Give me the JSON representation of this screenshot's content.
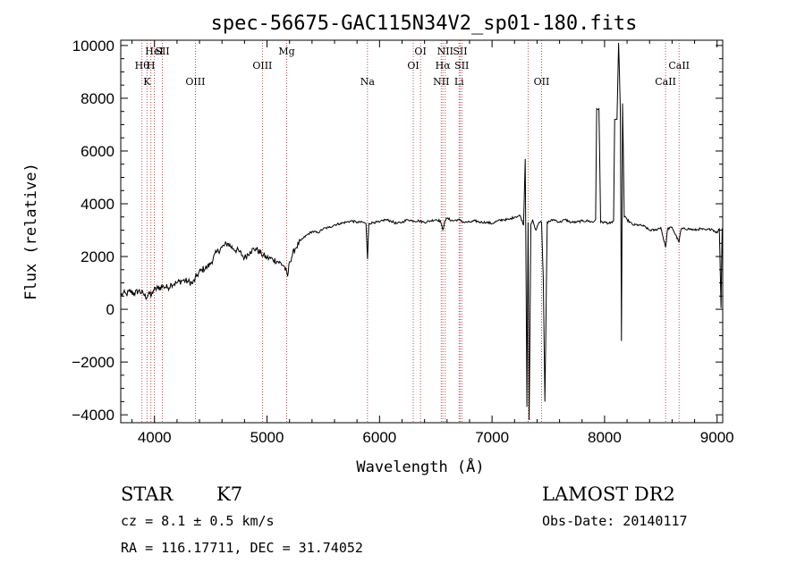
{
  "chart_data": {
    "type": "line",
    "title": "spec-56675-GAC115N34V2_sp01-180.fits",
    "xlabel": "Wavelength (Å)",
    "ylabel": "Flux (relative)",
    "xlim": [
      3700,
      9050
    ],
    "ylim": [
      -4300,
      10200
    ],
    "x_ticks": [
      4000,
      5000,
      6000,
      7000,
      8000,
      9000
    ],
    "y_ticks": [
      -4000,
      -2000,
      0,
      2000,
      4000,
      6000,
      8000,
      10000
    ],
    "x_tick_labels": [
      "4000",
      "5000",
      "6000",
      "7000",
      "8000",
      "9000"
    ],
    "y_tick_labels": [
      "−4000",
      "−2000",
      "0",
      "2000",
      "4000",
      "6000",
      "8000",
      "10000"
    ],
    "grid": false,
    "series": [
      {
        "color": "#000000",
        "points": [
          [
            3700,
            500
          ],
          [
            3720,
            620
          ],
          [
            3750,
            560
          ],
          [
            3780,
            680
          ],
          [
            3820,
            600
          ],
          [
            3860,
            700
          ],
          [
            3900,
            580
          ],
          [
            3933,
            450
          ],
          [
            3950,
            650
          ],
          [
            3968,
            480
          ],
          [
            3990,
            720
          ],
          [
            4030,
            800
          ],
          [
            4080,
            870
          ],
          [
            4120,
            820
          ],
          [
            4150,
            960
          ],
          [
            4200,
            1000
          ],
          [
            4250,
            1100
          ],
          [
            4300,
            1050
          ],
          [
            4340,
            980
          ],
          [
            4380,
            1300
          ],
          [
            4420,
            1500
          ],
          [
            4470,
            1600
          ],
          [
            4500,
            1750
          ],
          [
            4550,
            2150
          ],
          [
            4600,
            2350
          ],
          [
            4650,
            2500
          ],
          [
            4700,
            2300
          ],
          [
            4750,
            2200
          ],
          [
            4800,
            1950
          ],
          [
            4850,
            2200
          ],
          [
            4900,
            2300
          ],
          [
            4950,
            2100
          ],
          [
            5000,
            1950
          ],
          [
            5050,
            1900
          ],
          [
            5100,
            1800
          ],
          [
            5150,
            1650
          ],
          [
            5183,
            1250
          ],
          [
            5200,
            1800
          ],
          [
            5250,
            2300
          ],
          [
            5300,
            2600
          ],
          [
            5350,
            2800
          ],
          [
            5400,
            2950
          ],
          [
            5450,
            2900
          ],
          [
            5500,
            3050
          ],
          [
            5550,
            3100
          ],
          [
            5600,
            3200
          ],
          [
            5650,
            3250
          ],
          [
            5700,
            3300
          ],
          [
            5750,
            3350
          ],
          [
            5800,
            3300
          ],
          [
            5850,
            3300
          ],
          [
            5880,
            3250
          ],
          [
            5893,
            1900
          ],
          [
            5905,
            3250
          ],
          [
            5950,
            3300
          ],
          [
            6000,
            3300
          ],
          [
            6050,
            3400
          ],
          [
            6100,
            3350
          ],
          [
            6150,
            3250
          ],
          [
            6200,
            3300
          ],
          [
            6250,
            3400
          ],
          [
            6300,
            3350
          ],
          [
            6350,
            3350
          ],
          [
            6400,
            3300
          ],
          [
            6450,
            3350
          ],
          [
            6500,
            3400
          ],
          [
            6540,
            3350
          ],
          [
            6563,
            3000
          ],
          [
            6580,
            3350
          ],
          [
            6600,
            3450
          ],
          [
            6650,
            3350
          ],
          [
            6700,
            3400
          ],
          [
            6750,
            3300
          ],
          [
            6800,
            3300
          ],
          [
            6850,
            3350
          ],
          [
            6900,
            3300
          ],
          [
            6950,
            3300
          ],
          [
            7000,
            3250
          ],
          [
            7050,
            3350
          ],
          [
            7100,
            3400
          ],
          [
            7150,
            3400
          ],
          [
            7200,
            3500
          ],
          [
            7250,
            3550
          ],
          [
            7280,
            3200
          ],
          [
            7295,
            5700
          ],
          [
            7310,
            -3700
          ],
          [
            7320,
            3300
          ],
          [
            7330,
            -4200
          ],
          [
            7345,
            3200
          ],
          [
            7360,
            3400
          ],
          [
            7390,
            3000
          ],
          [
            7420,
            3300
          ],
          [
            7440,
            3300
          ],
          [
            7455,
            1200
          ],
          [
            7470,
            -3500
          ],
          [
            7490,
            3300
          ],
          [
            7550,
            3400
          ],
          [
            7600,
            3300
          ],
          [
            7650,
            3400
          ],
          [
            7700,
            3300
          ],
          [
            7750,
            3300
          ],
          [
            7800,
            3350
          ],
          [
            7850,
            3350
          ],
          [
            7900,
            3300
          ],
          [
            7920,
            3400
          ],
          [
            7930,
            7600
          ],
          [
            7950,
            7600
          ],
          [
            7965,
            3300
          ],
          [
            8000,
            3300
          ],
          [
            8050,
            3250
          ],
          [
            8080,
            3350
          ],
          [
            8090,
            7200
          ],
          [
            8110,
            7200
          ],
          [
            8125,
            10100
          ],
          [
            8140,
            7600
          ],
          [
            8150,
            -1200
          ],
          [
            8160,
            7800
          ],
          [
            8175,
            3500
          ],
          [
            8200,
            3400
          ],
          [
            8250,
            3200
          ],
          [
            8300,
            3200
          ],
          [
            8350,
            3150
          ],
          [
            8400,
            3000
          ],
          [
            8450,
            3000
          ],
          [
            8500,
            3100
          ],
          [
            8542,
            2350
          ],
          [
            8560,
            3050
          ],
          [
            8600,
            3100
          ],
          [
            8662,
            2550
          ],
          [
            8680,
            3050
          ],
          [
            8750,
            3050
          ],
          [
            8800,
            3000
          ],
          [
            8850,
            3050
          ],
          [
            8900,
            3000
          ],
          [
            8950,
            3050
          ],
          [
            9000,
            2900
          ],
          [
            9020,
            3050
          ],
          [
            9035,
            50
          ],
          [
            9045,
            3050
          ],
          [
            9050,
            3050
          ]
        ]
      }
    ],
    "lines": [
      {
        "w": 3889,
        "label": "Hθ",
        "row": 1
      },
      {
        "w": 3933,
        "label": "K",
        "row": 2
      },
      {
        "w": 3968,
        "label": "H",
        "row": 1
      },
      {
        "w": 3998,
        "label": "HeI",
        "row": 0
      },
      {
        "w": 4070,
        "label": "SII",
        "row": 0
      },
      {
        "w": 4363,
        "label": "OIII",
        "row": 2
      },
      {
        "w": 4959,
        "label": "OIII",
        "row": 1
      },
      {
        "w": 5175,
        "label": "Mg",
        "row": 0
      },
      {
        "w": 5893,
        "label": "Na",
        "row": 2
      },
      {
        "w": 6300,
        "label": "OI",
        "row": 1
      },
      {
        "w": 6364,
        "label": "OI",
        "row": 0
      },
      {
        "w": 6548,
        "label": "NII",
        "row": 2
      },
      {
        "w": 6563,
        "label": "Hα",
        "row": 1
      },
      {
        "w": 6584,
        "label": "NII",
        "row": 0
      },
      {
        "w": 6707,
        "label": "Li",
        "row": 2
      },
      {
        "w": 6717,
        "label": "SII",
        "row": 0
      },
      {
        "w": 6731,
        "label": "SII",
        "row": 1
      },
      {
        "w": 7320,
        "label": "",
        "row": 0
      },
      {
        "w": 7440,
        "label": "OII",
        "row": 2
      },
      {
        "w": 8542,
        "label": "CaII",
        "row": 2
      },
      {
        "w": 8662,
        "label": "CaII",
        "row": 1
      }
    ]
  },
  "info": {
    "class": "STAR",
    "subclass": "K7",
    "survey": "LAMOST DR2",
    "cz": "cz = 8.1 ± 0.5 km/s",
    "obs_date": "Obs-Date: 20140117",
    "radec": "RA = 116.17711, DEC =  31.74052"
  }
}
